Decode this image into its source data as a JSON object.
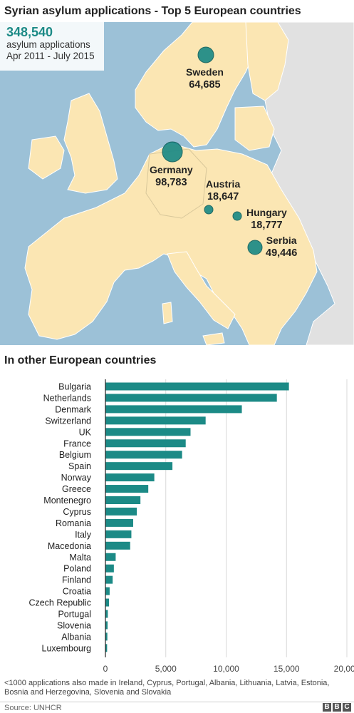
{
  "title": "Syrian asylum applications - Top 5 European countries",
  "total": {
    "value": "348,540",
    "line1": "asylum applications",
    "line2": "Apr 2011 - July 2015"
  },
  "map": {
    "countries": [
      {
        "name": "Sweden",
        "value": "64,685"
      },
      {
        "name": "Germany",
        "value": "98,783"
      },
      {
        "name": "Austria",
        "value": "18,647"
      },
      {
        "name": "Hungary",
        "value": "18,777"
      },
      {
        "name": "Serbia",
        "value": "49,446"
      }
    ]
  },
  "section_title": "In other European countries",
  "footnote": "<1000 applications also made in Ireland, Cyprus, Portugal, Albania, Lithuania, Latvia, Estonia, Bosnia and Herzegovina, Slovenia and Slovakia",
  "source": "Source: UNHCR",
  "logo": [
    "B",
    "B",
    "C"
  ],
  "colors": {
    "bar": "#1c8a86",
    "land": "#fbe6b3",
    "other_land": "#e1e1e1",
    "sea": "#9cc1d7"
  },
  "chart_data": {
    "type": "bar",
    "orientation": "horizontal",
    "title": "In other European countries",
    "categories": [
      "Bulgaria",
      "Netherlands",
      "Denmark",
      "Switzerland",
      "UK",
      "France",
      "Belgium",
      "Spain",
      "Norway",
      "Greece",
      "Montenegro",
      "Cyprus",
      "Romania",
      "Italy",
      "Macedonia",
      "Malta",
      "Poland",
      "Finland",
      "Croatia",
      "Czech Republic",
      "Portugal",
      "Slovenia",
      "Albania",
      "Luxembourg"
    ],
    "values": [
      15200,
      14200,
      11300,
      8300,
      7050,
      6650,
      6350,
      5550,
      4050,
      3550,
      2900,
      2600,
      2300,
      2150,
      2050,
      850,
      700,
      600,
      350,
      300,
      200,
      180,
      160,
      140
    ],
    "xlim": [
      0,
      20000
    ],
    "xticks": [
      0,
      5000,
      10000,
      15000,
      20000
    ],
    "xtick_labels": [
      "0",
      "5,000",
      "10,000",
      "15,000",
      "20,000"
    ],
    "grid": true
  }
}
